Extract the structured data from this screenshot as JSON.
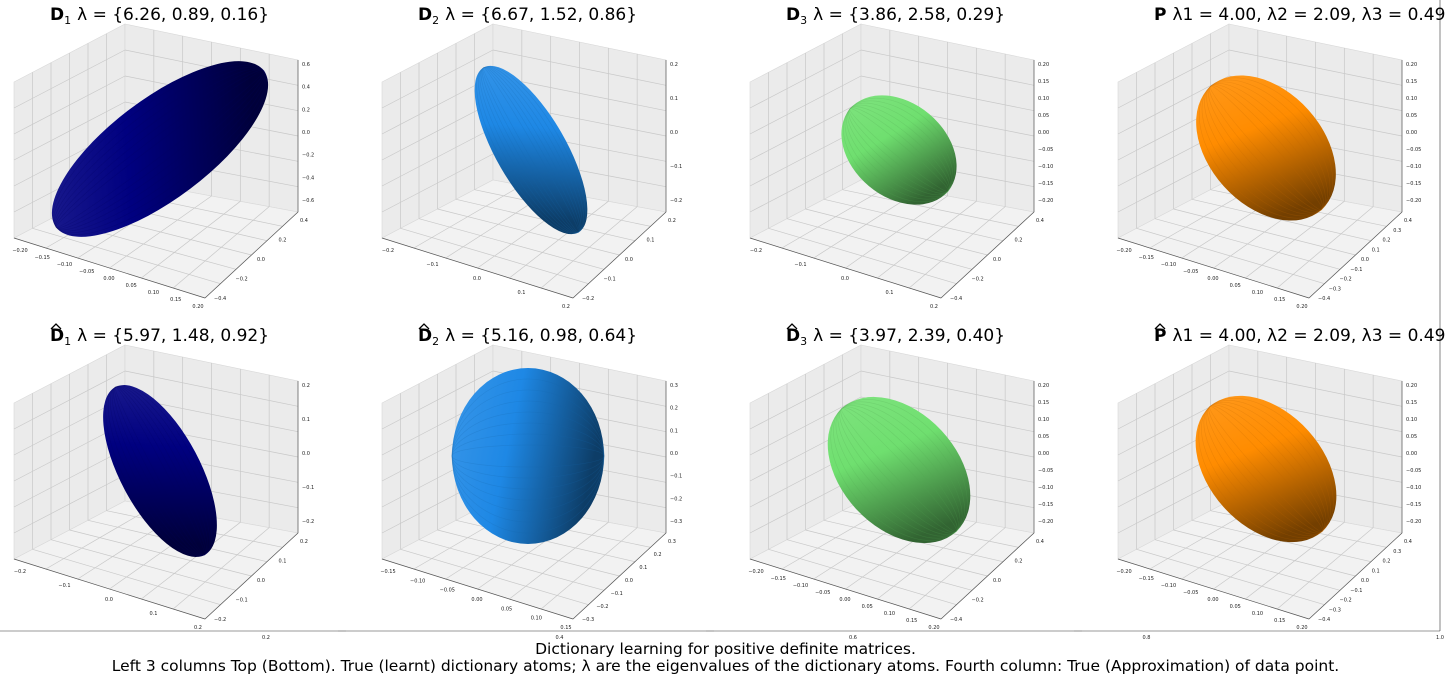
{
  "colors": {
    "D1": "#000080",
    "D2": "#1E88E5",
    "D3": "#6FDF6F",
    "P": "#FF8C00",
    "pane_floor": "#f2f2f2",
    "pane_back": "#ebebeb",
    "grid": "#c8c8c8"
  },
  "panels": [
    {
      "id": "D1-true",
      "row": 0,
      "col": 0,
      "title_prefix": "D",
      "title_subscript": "1",
      "hat": false,
      "title_rest": "λ = {6.26, 0.89, 0.16}",
      "eigenvalues": [
        6.26,
        0.89,
        0.16
      ],
      "color": "#000080",
      "xticks": [
        "−0.20",
        "−0.15",
        "−0.10",
        "−0.05",
        "0.00",
        "0.05",
        "0.10",
        "0.15",
        "0.20"
      ],
      "yticks": [
        "−0.4",
        "−0.2",
        "0.0",
        "0.2",
        "0.4"
      ],
      "zticks": [
        "0.6",
        "0.4",
        "0.2",
        "0.0",
        "−0.2",
        "−0.4",
        "−0.6"
      ]
    },
    {
      "id": "D2-true",
      "row": 0,
      "col": 1,
      "title_prefix": "D",
      "title_subscript": "2",
      "hat": false,
      "title_rest": "λ = {6.67, 1.52, 0.86}",
      "eigenvalues": [
        6.67,
        1.52,
        0.86
      ],
      "color": "#1E88E5",
      "xticks": [
        "−0.2",
        "−0.1",
        "0.0",
        "0.1",
        "0.2"
      ],
      "yticks": [
        "−0.2",
        "−0.1",
        "0.0",
        "0.1",
        "0.2"
      ],
      "zticks": [
        "0.2",
        "0.1",
        "0.0",
        "−0.1",
        "−0.2"
      ]
    },
    {
      "id": "D3-true",
      "row": 0,
      "col": 2,
      "title_prefix": "D",
      "title_subscript": "3",
      "hat": false,
      "title_rest": "λ = {3.86, 2.58, 0.29}",
      "eigenvalues": [
        3.86,
        2.58,
        0.29
      ],
      "color": "#6FDF6F",
      "xticks": [
        "−0.2",
        "−0.1",
        "0.0",
        "0.1",
        "0.2"
      ],
      "yticks": [
        "−0.4",
        "−0.2",
        "0.0",
        "0.2",
        "0.4"
      ],
      "zticks": [
        "0.20",
        "0.15",
        "0.10",
        "0.05",
        "0.00",
        "−0.05",
        "−0.10",
        "−0.15",
        "−0.20"
      ]
    },
    {
      "id": "P-true",
      "row": 0,
      "col": 3,
      "title_prefix": "P",
      "title_subscript": "",
      "hat": false,
      "title_rest": "λ1 = 4.00, λ2 = 2.09, λ3 = 0.49",
      "eigenvalues": [
        4.0,
        2.09,
        0.49
      ],
      "color": "#FF8C00",
      "xticks": [
        "−0.20",
        "−0.15",
        "−0.10",
        "−0.05",
        "0.00",
        "0.05",
        "0.10",
        "0.15",
        "0.20"
      ],
      "yticks": [
        "−0.4",
        "−0.3",
        "−0.2",
        "−0.1",
        "0.0",
        "0.1",
        "0.2",
        "0.3",
        "0.4"
      ],
      "zticks": [
        "0.20",
        "0.15",
        "0.10",
        "0.05",
        "0.00",
        "−0.05",
        "−0.10",
        "−0.15",
        "−0.20"
      ]
    },
    {
      "id": "D1-learnt",
      "row": 1,
      "col": 0,
      "title_prefix": "D",
      "title_subscript": "1",
      "hat": true,
      "title_rest": "λ = {5.97, 1.48, 0.92}",
      "eigenvalues": [
        5.97,
        1.48,
        0.92
      ],
      "color": "#000080",
      "xticks": [
        "−0.2",
        "−0.1",
        "0.0",
        "0.1",
        "0.2"
      ],
      "yticks": [
        "−0.2",
        "−0.1",
        "0.0",
        "0.1",
        "0.2"
      ],
      "zticks": [
        "0.2",
        "0.1",
        "0.0",
        "−0.1",
        "−0.2"
      ]
    },
    {
      "id": "D2-learnt",
      "row": 1,
      "col": 1,
      "title_prefix": "D",
      "title_subscript": "2",
      "hat": true,
      "title_rest": "λ = {5.16, 0.98, 0.64}",
      "eigenvalues": [
        5.16,
        0.98,
        0.64
      ],
      "color": "#1E88E5",
      "xticks": [
        "−0.15",
        "−0.10",
        "−0.05",
        "0.00",
        "0.05",
        "0.10",
        "0.15"
      ],
      "yticks": [
        "−0.3",
        "−0.2",
        "−0.1",
        "0.0",
        "0.1",
        "0.2",
        "0.3"
      ],
      "zticks": [
        "0.3",
        "0.2",
        "0.1",
        "0.0",
        "−0.1",
        "−0.2",
        "−0.3"
      ]
    },
    {
      "id": "D3-learnt",
      "row": 1,
      "col": 2,
      "title_prefix": "D",
      "title_subscript": "3",
      "hat": true,
      "title_rest": "λ = {3.97, 2.39, 0.40}",
      "eigenvalues": [
        3.97,
        2.39,
        0.4
      ],
      "color": "#6FDF6F",
      "xticks": [
        "−0.20",
        "−0.15",
        "−0.10",
        "−0.05",
        "0.00",
        "0.05",
        "0.10",
        "0.15",
        "0.20"
      ],
      "yticks": [
        "−0.4",
        "−0.2",
        "0.0",
        "0.2",
        "0.4"
      ],
      "zticks": [
        "0.20",
        "0.15",
        "0.10",
        "0.05",
        "0.00",
        "−0.05",
        "−0.10",
        "−0.15",
        "−0.20"
      ]
    },
    {
      "id": "P-approx",
      "row": 1,
      "col": 3,
      "title_prefix": "P",
      "title_subscript": "",
      "hat": true,
      "title_rest": "λ1 = 4.00, λ2 = 2.09, λ3 = 0.49",
      "eigenvalues": [
        4.0,
        2.09,
        0.49
      ],
      "color": "#FF8C00",
      "xticks": [
        "−0.20",
        "−0.15",
        "−0.10",
        "−0.05",
        "0.00",
        "0.05",
        "0.10",
        "0.15",
        "0.20"
      ],
      "yticks": [
        "−0.4",
        "−0.3",
        "−0.2",
        "−0.1",
        "0.0",
        "0.1",
        "0.2",
        "0.3",
        "0.4"
      ],
      "zticks": [
        "0.20",
        "0.15",
        "0.10",
        "0.05",
        "0.00",
        "−0.05",
        "−0.10",
        "−0.15",
        "−0.20"
      ]
    }
  ],
  "outer_axis": {
    "xticks": [
      "0.2",
      "0.4",
      "0.6",
      "0.8",
      "1.0"
    ]
  },
  "caption": {
    "line1": "Dictionary learning for positive definite matrices.",
    "line2": "Left 3 columns Top (Bottom). True (learnt) dictionary atoms; λ are the eigenvalues of the dictionary atoms. Fourth column: True (Approximation) of data point."
  }
}
